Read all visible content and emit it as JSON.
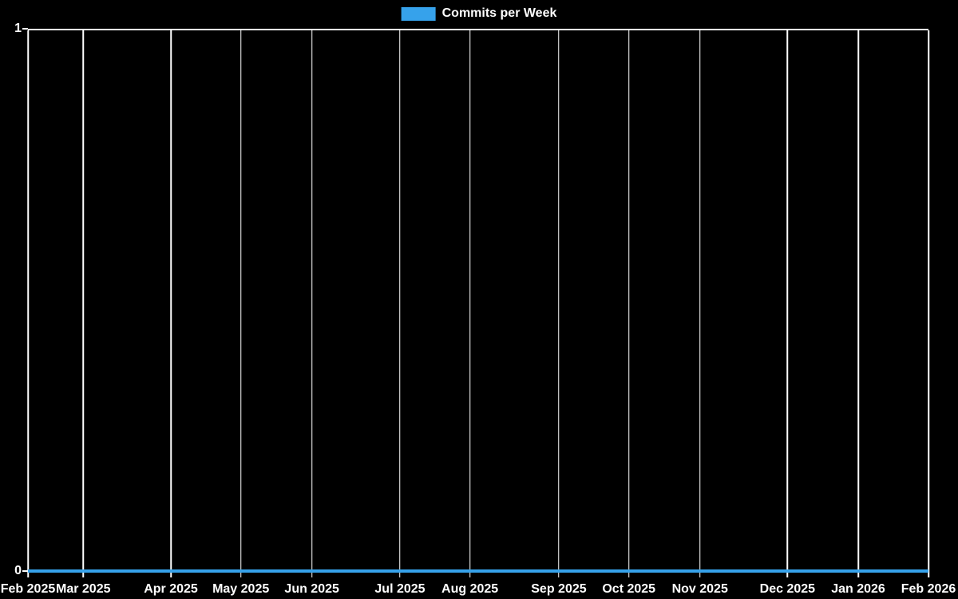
{
  "colors": {
    "background": "#000000",
    "foreground": "#ffffff",
    "accent_blue": "#36a2eb",
    "gridline": "#ffffff"
  },
  "legend": {
    "label": "Commits per Week",
    "swatch_color": "#36a2eb"
  },
  "chart_data": {
    "type": "line",
    "title": "Commits per Week",
    "legend_position": "top-center",
    "grid": "vertical-only",
    "xlabel": "",
    "ylabel": "",
    "ylim": [
      0,
      1
    ],
    "y_ticks": [
      {
        "label": "1",
        "value": 1
      },
      {
        "label": "0",
        "value": 0
      }
    ],
    "x_ticks": [
      {
        "label": "Feb 2025",
        "pos_pct": 0
      },
      {
        "label": "Mar 2025",
        "pos_pct": 6.14
      },
      {
        "label": "Apr 2025",
        "pos_pct": 15.87
      },
      {
        "label": "May 2025",
        "pos_pct": 23.64
      },
      {
        "label": "Jun 2025",
        "pos_pct": 31.53
      },
      {
        "label": "Jul 2025",
        "pos_pct": 41.31
      },
      {
        "label": "Aug 2025",
        "pos_pct": 49.08
      },
      {
        "label": "Sep 2025",
        "pos_pct": 58.95
      },
      {
        "label": "Oct 2025",
        "pos_pct": 66.73
      },
      {
        "label": "Nov 2025",
        "pos_pct": 74.62
      },
      {
        "label": "Dec 2025",
        "pos_pct": 84.34
      },
      {
        "label": "Jan 2026",
        "pos_pct": 92.2
      },
      {
        "label": "Feb 2026",
        "pos_pct": 100
      }
    ],
    "series": [
      {
        "name": "Commits per Week",
        "color": "#36a2eb",
        "x": [
          "Feb 2025",
          "Mar 2025",
          "Apr 2025",
          "May 2025",
          "Jun 2025",
          "Jul 2025",
          "Aug 2025",
          "Sep 2025",
          "Oct 2025",
          "Nov 2025",
          "Dec 2025",
          "Jan 2026",
          "Feb 2026"
        ],
        "values": [
          0,
          0,
          0,
          0,
          0,
          0,
          0,
          0,
          0,
          0,
          0,
          0,
          0
        ]
      }
    ]
  }
}
